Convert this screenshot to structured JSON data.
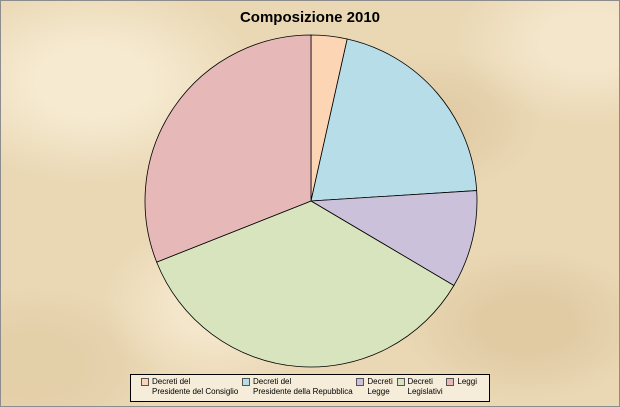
{
  "chart_data": {
    "type": "pie",
    "title": "Composizione 2010",
    "categories": [
      "Decreti del\nPresidente del Consiglio",
      "Decreti del\nPresidente della Repubblica",
      "Decreti\nLegge",
      "Decreti\nLegislativi",
      "Leggi"
    ],
    "values": [
      3.5,
      20.5,
      9.5,
      35.5,
      31.0
    ],
    "colors": [
      "#fcd5b5",
      "#b7dee8",
      "#ccc1da",
      "#d7e4bd",
      "#e6b9b8"
    ],
    "legend": "bottom"
  }
}
